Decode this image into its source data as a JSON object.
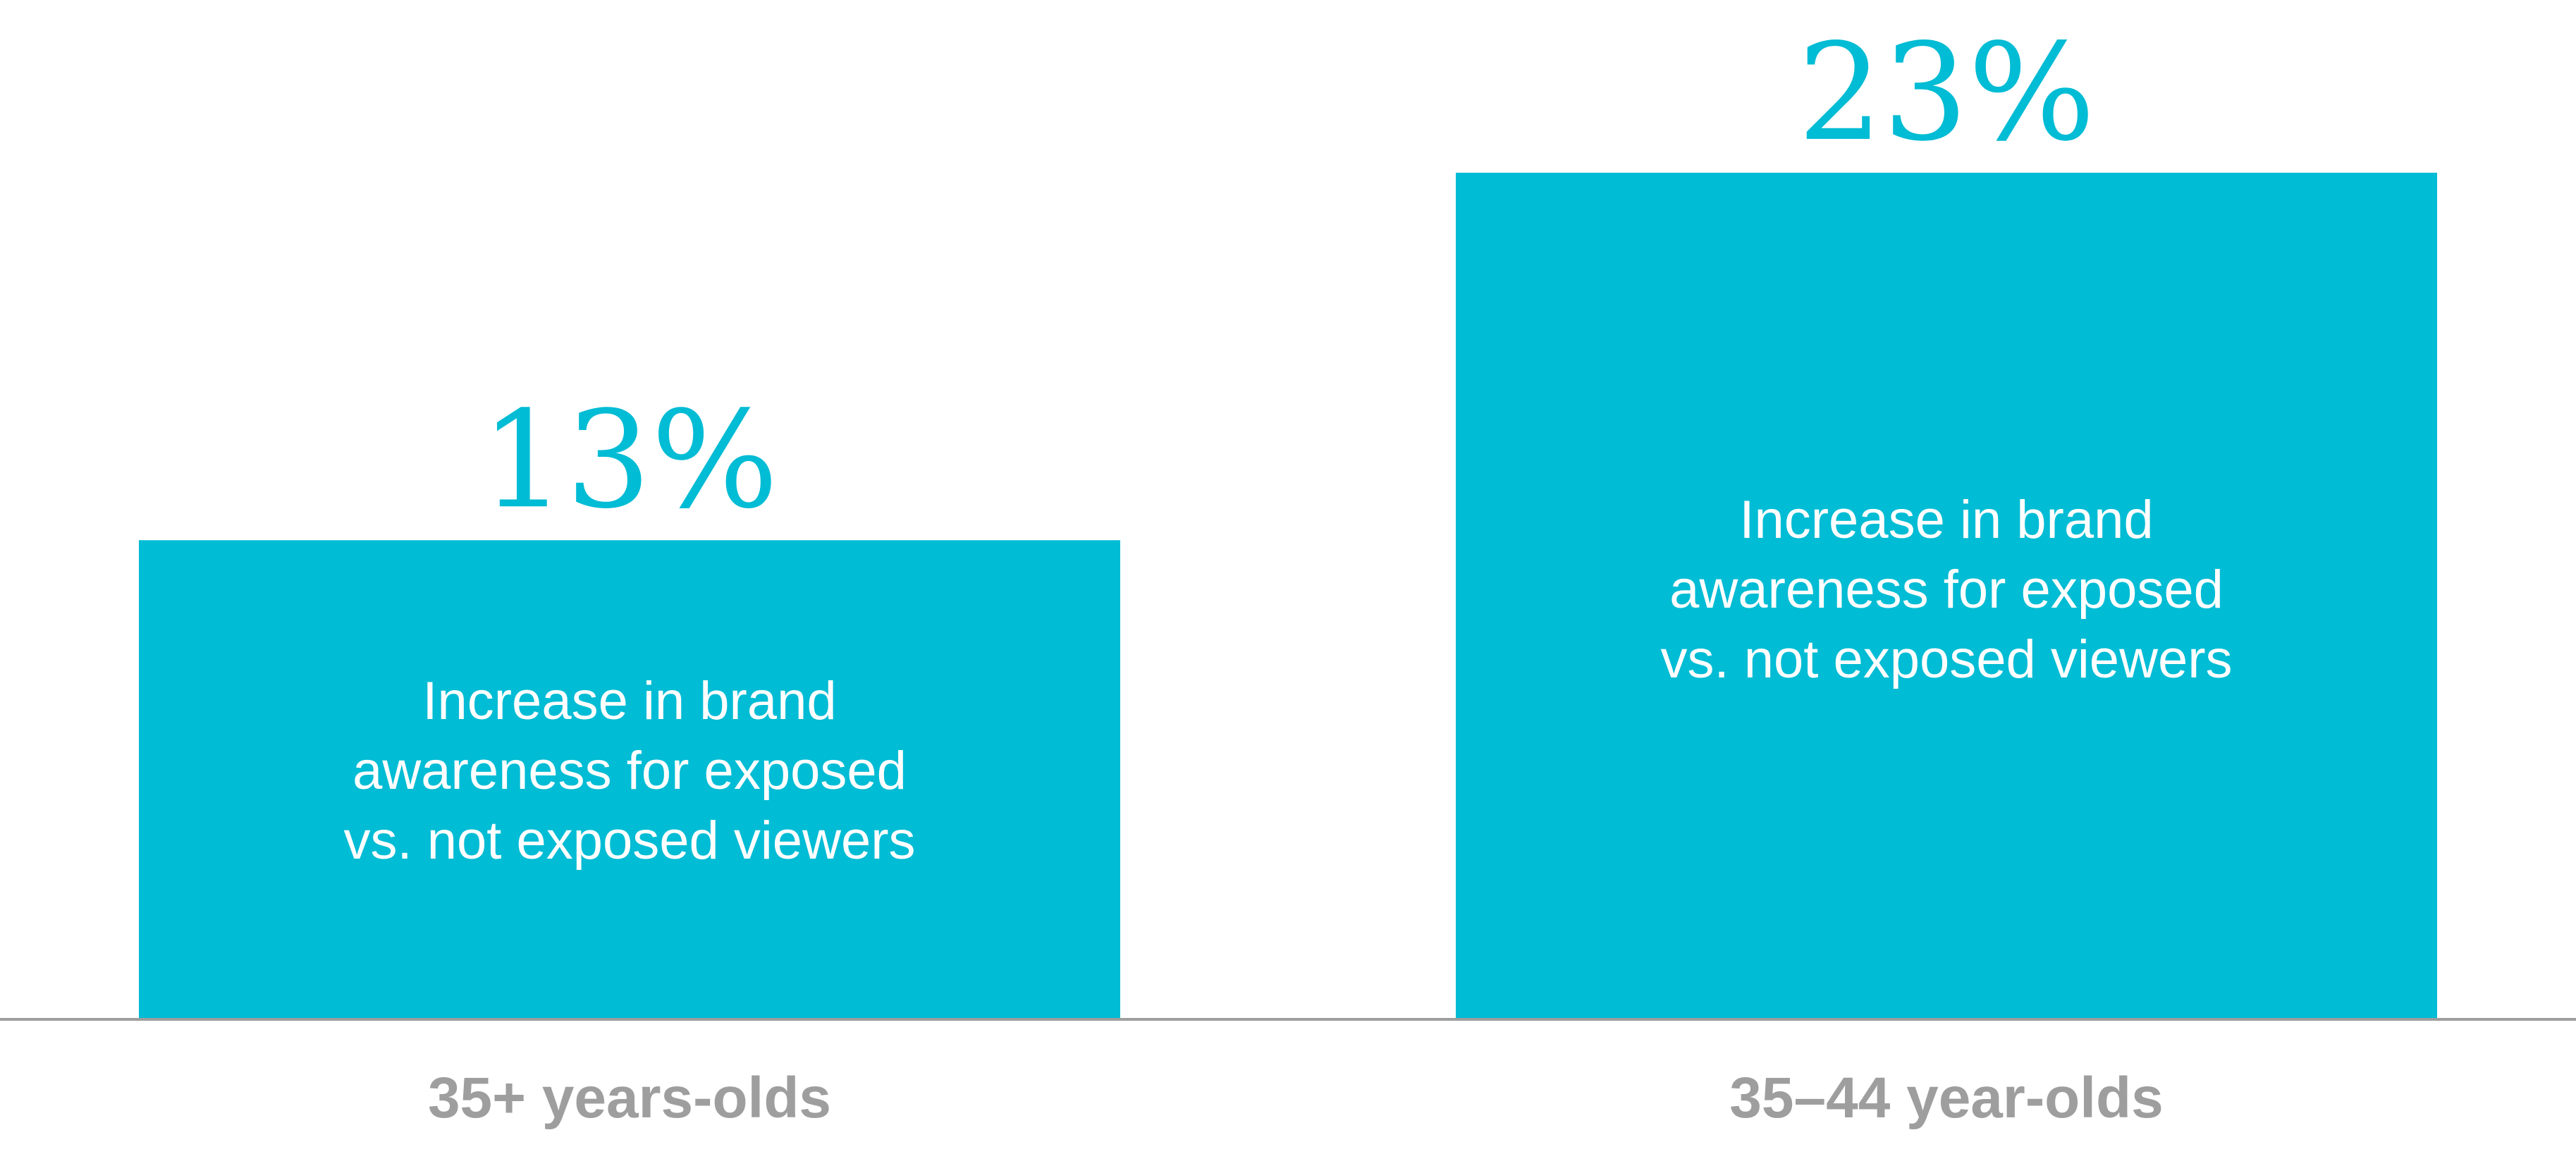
{
  "chart_data": {
    "type": "bar",
    "categories": [
      "35+ years-olds",
      "35–44 year-olds"
    ],
    "values": [
      13,
      23
    ],
    "value_labels": [
      "13%",
      "23%"
    ],
    "bar_labels": [
      [
        "Increase in brand",
        "awareness for exposed",
        "vs. not exposed viewers"
      ],
      [
        "Increase in brand",
        "awareness for exposed",
        "vs. not exposed viewers"
      ]
    ],
    "ylim": [
      0,
      23
    ],
    "grid": false,
    "legend": "none"
  },
  "colors": {
    "bar": "#00BCD4",
    "value_label": "#00BCD4",
    "bar_text": "#FFFFFF",
    "category_label": "#9E9E9E",
    "baseline": "#9E9E9E"
  }
}
